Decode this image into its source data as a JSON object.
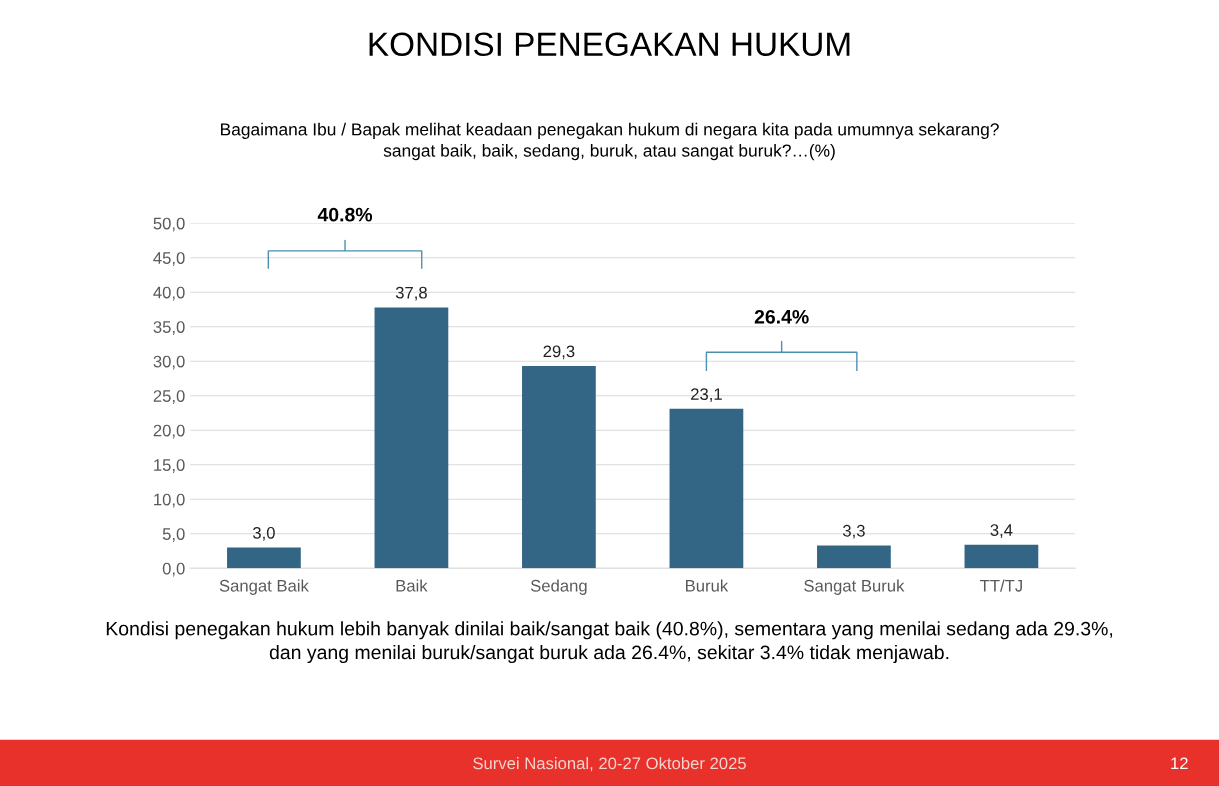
{
  "chart_data": {
    "type": "bar",
    "title": "KONDISI PENEGAKAN HUKUM",
    "subtitle": "Bagaimana Ibu / Bapak melihat keadaan penegakan hukum di negara kita pada umumnya sekarang?\nsangat baik, baik, sedang, buruk, atau sangat buruk?…(%)",
    "categories": [
      "Sangat Baik",
      "Baik",
      "Sedang",
      "Buruk",
      "Sangat Buruk",
      "TT/TJ"
    ],
    "values": [
      3.0,
      37.8,
      29.3,
      23.1,
      3.3,
      3.4
    ],
    "value_labels": [
      "3,0",
      "37,8",
      "29,3",
      "23,1",
      "3,3",
      "3,4"
    ],
    "color": "#336685",
    "ylim": [
      0,
      50
    ],
    "yticks": [
      {
        "value": 0,
        "label": "0,0"
      },
      {
        "value": 5,
        "label": "5,0"
      },
      {
        "value": 10,
        "label": "10,0"
      },
      {
        "value": 15,
        "label": "15,0"
      },
      {
        "value": 20,
        "label": "20,0"
      },
      {
        "value": 25,
        "label": "25,0"
      },
      {
        "value": 30,
        "label": "30,0"
      },
      {
        "value": 35,
        "label": "35,0"
      },
      {
        "value": 40,
        "label": "40,0"
      },
      {
        "value": 45,
        "label": "45,0"
      },
      {
        "value": 50,
        "label": "50,0"
      }
    ],
    "grid": "y",
    "annotations": [
      "40.8%",
      "26.4%",
      "Kondisi penegakan hukum lebih banyak dinilai baik/sangat baik (40.8%), sementara yang menilai sedang ada 29.3%,\ndan yang menilai buruk/sangat buruk ada 26.4%, sekitar 3.4% tidak menjawab.",
      "Survei Nasional, 20-27 Oktober 2025",
      "12"
    ]
  }
}
